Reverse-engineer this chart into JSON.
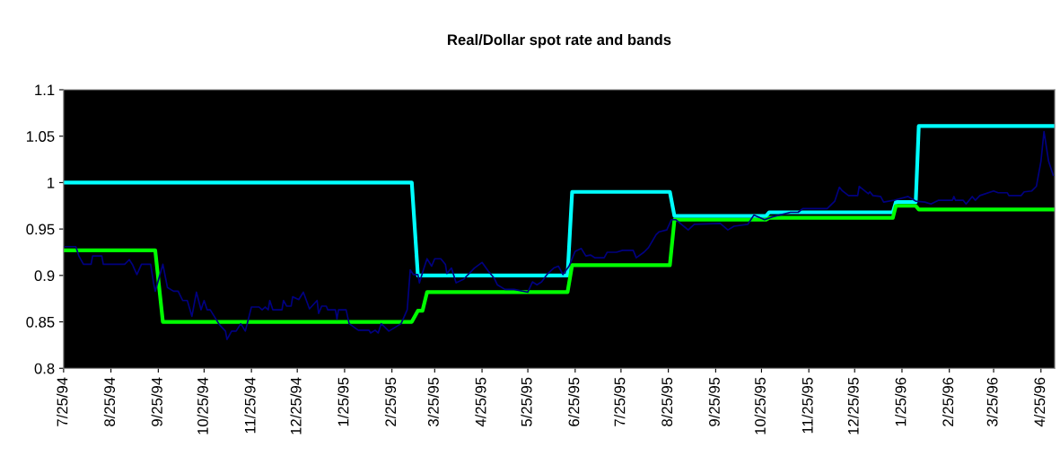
{
  "chart_data": {
    "type": "line",
    "title": "Real/Dollar spot rate and bands",
    "xlim": [
      "1994-07-25",
      "1996-05-04"
    ],
    "ylim": [
      0.8,
      1.1
    ],
    "yticks": [
      0.8,
      0.85,
      0.9,
      0.95,
      1,
      1.05,
      1.1
    ],
    "xticks": [
      {
        "value": "1994-07-25",
        "label": "7/25/94"
      },
      {
        "value": "1994-08-25",
        "label": "8/25/94"
      },
      {
        "value": "1994-09-25",
        "label": "9/25/94"
      },
      {
        "value": "1994-10-25",
        "label": "10/25/94"
      },
      {
        "value": "1994-11-25",
        "label": "11/25/94"
      },
      {
        "value": "1994-12-25",
        "label": "12/25/94"
      },
      {
        "value": "1995-01-25",
        "label": "1/25/95"
      },
      {
        "value": "1995-02-25",
        "label": "2/25/95"
      },
      {
        "value": "1995-03-25",
        "label": "3/25/95"
      },
      {
        "value": "1995-04-25",
        "label": "4/25/95"
      },
      {
        "value": "1995-05-25",
        "label": "5/25/95"
      },
      {
        "value": "1995-06-25",
        "label": "6/25/95"
      },
      {
        "value": "1995-07-25",
        "label": "7/25/95"
      },
      {
        "value": "1995-08-25",
        "label": "8/25/95"
      },
      {
        "value": "1995-09-25",
        "label": "9/25/95"
      },
      {
        "value": "1995-10-25",
        "label": "10/25/95"
      },
      {
        "value": "1995-11-25",
        "label": "11/25/95"
      },
      {
        "value": "1995-12-25",
        "label": "12/25/95"
      },
      {
        "value": "1996-01-25",
        "label": "1/25/96"
      },
      {
        "value": "1996-02-25",
        "label": "2/25/96"
      },
      {
        "value": "1996-03-25",
        "label": "3/25/96"
      },
      {
        "value": "1996-04-25",
        "label": "4/25/96"
      }
    ],
    "grid": false,
    "legend": false,
    "series": [
      {
        "color": "#000080",
        "x": [
          "1994-07-26",
          "1994-08-02",
          "1994-08-04",
          "1994-08-07",
          "1994-08-12",
          "1994-08-13",
          "1994-08-19",
          "1994-08-20",
          "1994-09-03",
          "1994-09-06",
          "1994-09-08",
          "1994-09-11",
          "1994-09-14",
          "1994-09-20",
          "1994-09-22",
          "1994-09-23",
          "1994-09-28",
          "1994-10-01",
          "1994-10-05",
          "1994-10-08",
          "1994-10-11",
          "1994-10-14",
          "1994-10-17",
          "1994-10-20",
          "1994-10-23",
          "1994-10-25",
          "1994-10-27",
          "1994-10-29",
          "1994-11-04",
          "1994-11-08",
          "1994-11-09",
          "1994-11-12",
          "1994-11-15",
          "1994-11-18",
          "1994-11-21",
          "1994-11-25",
          "1994-11-30",
          "1994-12-02",
          "1994-12-04",
          "1994-12-06",
          "1994-12-07",
          "1994-12-09",
          "1994-12-15",
          "1994-12-16",
          "1994-12-18",
          "1994-12-21",
          "1994-12-22",
          "1994-12-26",
          "1994-12-29",
          "1995-01-02",
          "1995-01-07",
          "1995-01-08",
          "1995-01-10",
          "1995-01-13",
          "1995-01-14",
          "1995-01-19",
          "1995-01-20",
          "1995-01-21",
          "1995-01-26",
          "1995-01-28",
          "1995-02-03",
          "1995-02-10",
          "1995-02-11",
          "1995-02-14",
          "1995-02-16",
          "1995-02-18",
          "1995-02-23",
          "1995-03-03",
          "1995-03-07",
          "1995-03-09",
          "1995-03-11",
          "1995-03-14",
          "1995-03-15",
          "1995-03-18",
          "1995-03-20",
          "1995-03-23",
          "1995-03-25",
          "1995-03-29",
          "1995-04-01",
          "1995-04-02",
          "1995-04-05",
          "1995-04-08",
          "1995-04-13",
          "1995-04-20",
          "1995-04-25",
          "1995-04-29",
          "1995-05-03",
          "1995-05-05",
          "1995-05-10",
          "1995-05-16",
          "1995-05-25",
          "1995-05-28",
          "1995-05-31",
          "1995-06-03",
          "1995-06-07",
          "1995-06-11",
          "1995-06-14",
          "1995-06-17",
          "1995-06-21",
          "1995-06-25",
          "1995-06-29",
          "1995-07-02",
          "1995-07-05",
          "1995-07-08",
          "1995-07-14",
          "1995-07-16",
          "1995-07-22",
          "1995-07-26",
          "1995-08-02",
          "1995-08-04",
          "1995-08-09",
          "1995-08-12",
          "1995-08-17",
          "1995-08-19",
          "1995-08-24",
          "1995-08-27",
          "1995-08-30",
          "1995-09-07",
          "1995-09-11",
          "1995-09-28",
          "1995-10-03",
          "1995-10-07",
          "1995-10-16",
          "1995-10-20",
          "1995-10-27",
          "1995-11-01",
          "1995-11-13",
          "1995-11-18",
          "1995-11-21",
          "1995-12-07",
          "1995-12-12",
          "1995-12-15",
          "1995-12-17",
          "1995-12-21",
          "1995-12-27",
          "1995-12-28",
          "1996-01-03",
          "1996-01-04",
          "1996-01-06",
          "1996-01-11",
          "1996-01-13",
          "1996-01-20",
          "1996-01-29",
          "1996-02-03",
          "1996-02-09",
          "1996-02-13",
          "1996-02-18",
          "1996-02-27",
          "1996-02-28",
          "1996-02-29",
          "1996-03-05",
          "1996-03-07",
          "1996-03-11",
          "1996-03-13",
          "1996-03-16",
          "1996-03-25",
          "1996-03-28",
          "1996-04-03",
          "1996-04-04",
          "1996-04-12",
          "1996-04-14",
          "1996-04-19",
          "1996-04-22",
          "1996-04-25",
          "1996-04-27",
          "1996-04-30",
          "1996-05-03"
        ],
        "values": [
          0.931,
          0.931,
          0.921,
          0.912,
          0.912,
          0.921,
          0.921,
          0.912,
          0.912,
          0.917,
          0.912,
          0.901,
          0.912,
          0.912,
          0.891,
          0.883,
          0.912,
          0.887,
          0.883,
          0.883,
          0.873,
          0.873,
          0.856,
          0.882,
          0.863,
          0.873,
          0.863,
          0.863,
          0.847,
          0.84,
          0.831,
          0.84,
          0.84,
          0.848,
          0.84,
          0.866,
          0.866,
          0.863,
          0.866,
          0.863,
          0.873,
          0.863,
          0.863,
          0.873,
          0.867,
          0.867,
          0.877,
          0.874,
          0.882,
          0.864,
          0.873,
          0.859,
          0.867,
          0.867,
          0.863,
          0.863,
          0.853,
          0.863,
          0.863,
          0.848,
          0.841,
          0.841,
          0.838,
          0.841,
          0.838,
          0.848,
          0.84,
          0.848,
          0.863,
          0.906,
          0.901,
          0.901,
          0.892,
          0.908,
          0.918,
          0.91,
          0.918,
          0.918,
          0.912,
          0.902,
          0.908,
          0.892,
          0.896,
          0.908,
          0.914,
          0.905,
          0.897,
          0.89,
          0.885,
          0.885,
          0.882,
          0.893,
          0.89,
          0.893,
          0.902,
          0.908,
          0.91,
          0.901,
          0.91,
          0.926,
          0.929,
          0.921,
          0.922,
          0.919,
          0.919,
          0.925,
          0.925,
          0.927,
          0.927,
          0.919,
          0.925,
          0.93,
          0.944,
          0.947,
          0.949,
          0.96,
          0.96,
          0.949,
          0.955,
          0.956,
          0.949,
          0.953,
          0.955,
          0.965,
          0.96,
          0.963,
          0.968,
          0.968,
          0.972,
          0.972,
          0.98,
          0.995,
          0.991,
          0.986,
          0.986,
          0.996,
          0.988,
          0.99,
          0.986,
          0.985,
          0.979,
          0.981,
          0.985,
          0.98,
          0.979,
          0.977,
          0.981,
          0.981,
          0.985,
          0.981,
          0.981,
          0.977,
          0.985,
          0.981,
          0.986,
          0.991,
          0.989,
          0.989,
          0.986,
          0.986,
          0.99,
          0.991,
          0.996,
          1.023,
          1.055,
          1.023,
          1.008
        ]
      },
      {
        "color": "#00ffff",
        "x": [
          "1994-07-25",
          "1995-03-10",
          "1995-03-14",
          "1995-06-20",
          "1995-06-23",
          "1995-08-26",
          "1995-08-29",
          "1995-10-28",
          "1995-10-30",
          "1996-01-19",
          "1996-01-21",
          "1996-02-03",
          "1996-02-05",
          "1996-05-04"
        ],
        "values": [
          1.0,
          1.0,
          0.9,
          0.9,
          0.99,
          0.99,
          0.964,
          0.964,
          0.968,
          0.968,
          0.979,
          0.979,
          1.061,
          1.061
        ]
      },
      {
        "color": "#00ff00",
        "x": [
          "1994-07-25",
          "1994-09-23",
          "1994-09-28",
          "1995-03-10",
          "1995-03-14",
          "1995-03-17",
          "1995-03-20",
          "1995-06-20",
          "1995-06-23",
          "1995-08-26",
          "1995-08-29",
          "1995-10-28",
          "1995-10-30",
          "1996-01-19",
          "1996-01-21",
          "1996-02-03",
          "1996-02-05",
          "1996-05-04"
        ],
        "values": [
          0.927,
          0.927,
          0.85,
          0.85,
          0.862,
          0.862,
          0.882,
          0.882,
          0.911,
          0.911,
          0.96,
          0.96,
          0.962,
          0.962,
          0.975,
          0.975,
          0.971,
          0.971
        ]
      }
    ]
  }
}
